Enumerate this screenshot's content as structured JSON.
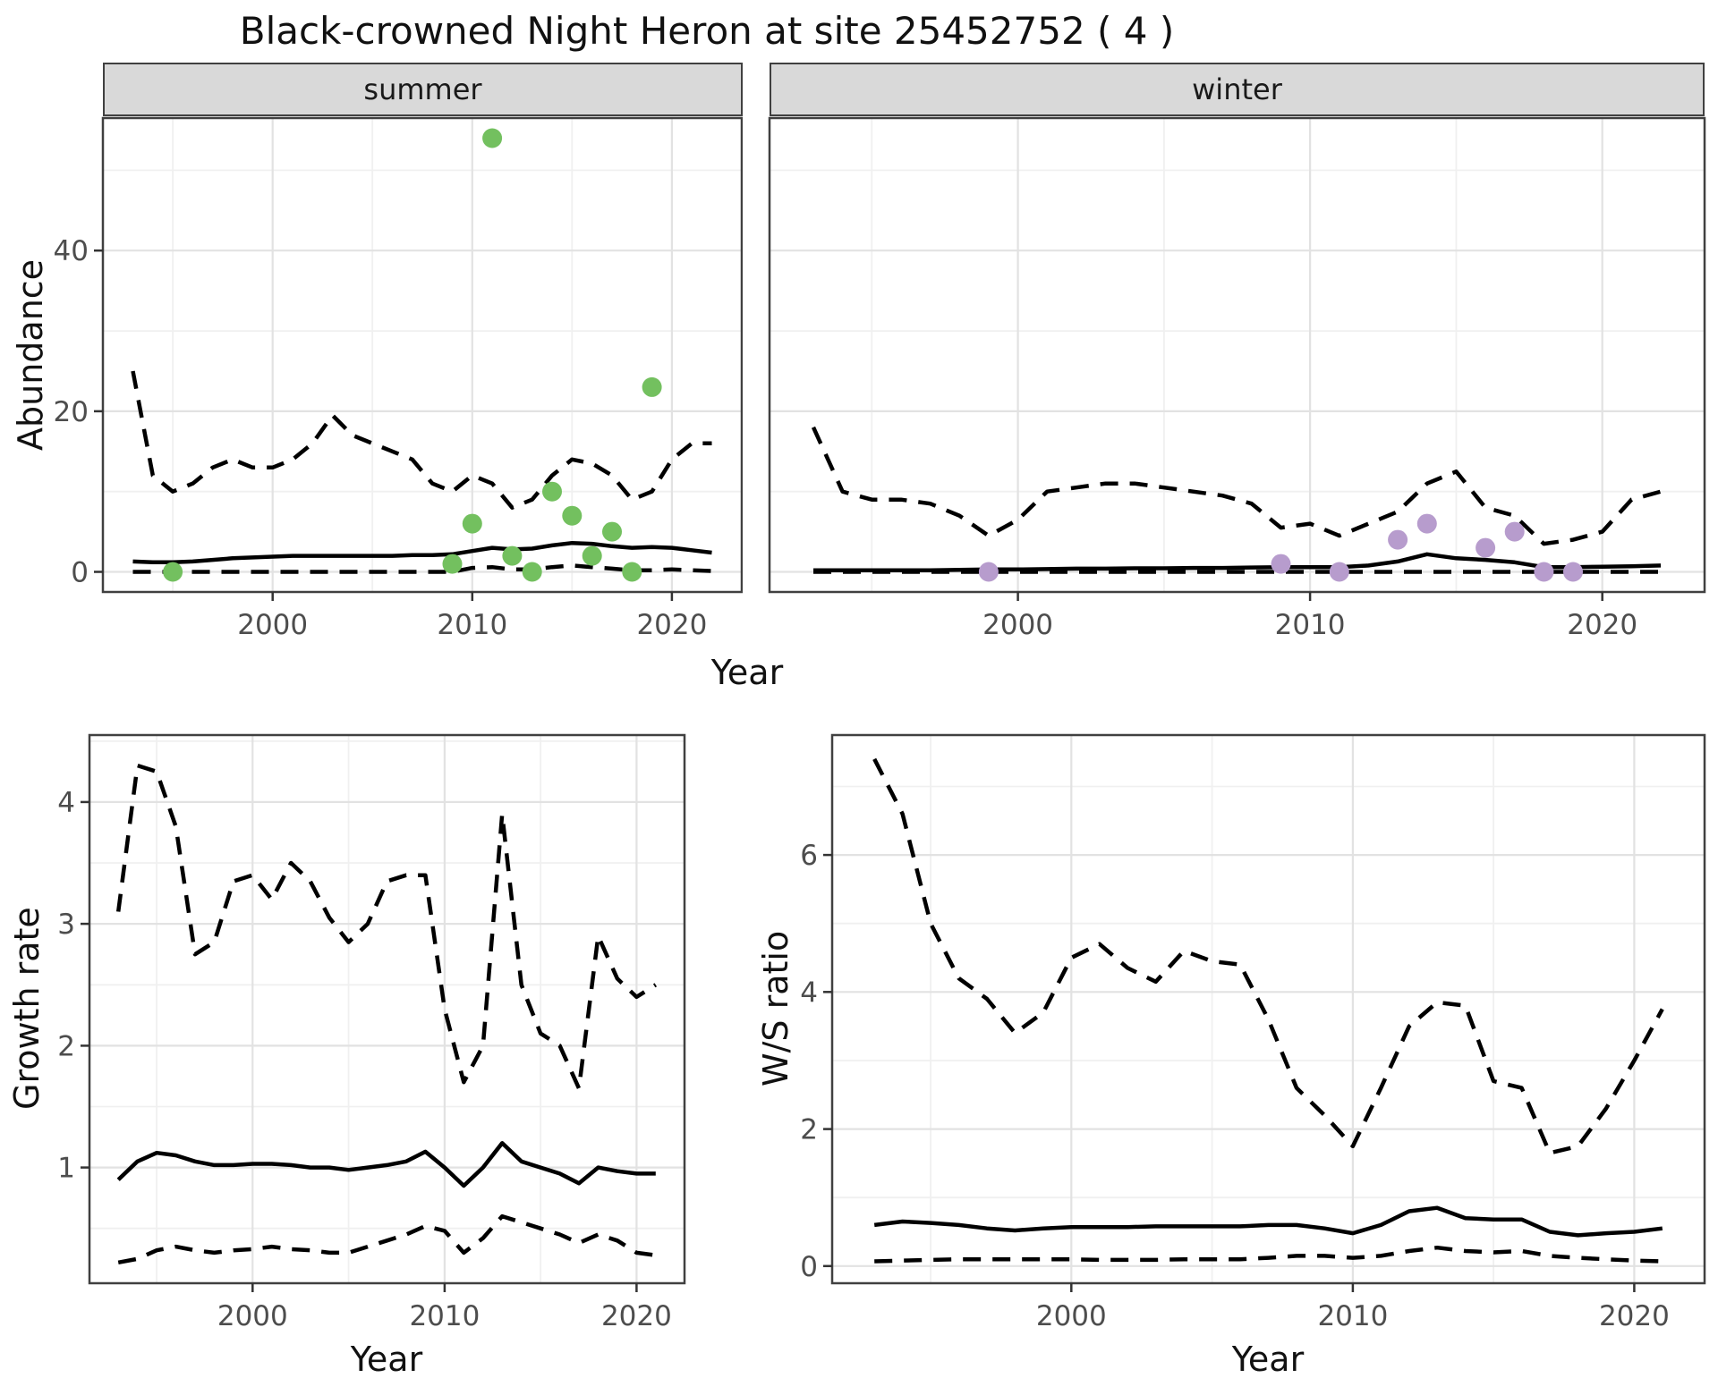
{
  "title": "Black-crowned Night Heron at site 25452752 ( 4 )",
  "facets": {
    "summer": "summer",
    "winter": "winter"
  },
  "axes": {
    "abundance": "Abundance",
    "year": "Year",
    "growth": "Growth rate",
    "ws": "W/S ratio"
  },
  "colors": {
    "summer_point": "#73c05f",
    "winter_point": "#b79ccd",
    "line": "#000000",
    "strip_bg": "#d9d9d9",
    "grid_major": "#e2e2e2",
    "grid_minor": "#f0f0f0",
    "tick_label": "#4d4d4d",
    "tick_mark": "#333333",
    "panel_border": "#404040"
  },
  "chart_data": [
    {
      "id": "summer",
      "type": "line",
      "facet_label": "summer",
      "xlabel": "Year",
      "ylabel": "Abundance",
      "xlim": [
        1991.5,
        2023.5
      ],
      "ylim": [
        -2.5,
        56.5
      ],
      "x_ticks": [
        2000,
        2010,
        2020
      ],
      "x_minor": [
        1995,
        2005,
        2015
      ],
      "y_ticks": [
        0,
        20,
        40
      ],
      "y_minor": [
        10,
        30,
        50
      ],
      "y_labels": true,
      "years": [
        1993,
        1994,
        1995,
        1996,
        1997,
        1998,
        1999,
        2000,
        2001,
        2002,
        2003,
        2004,
        2005,
        2006,
        2007,
        2008,
        2009,
        2010,
        2011,
        2012,
        2013,
        2014,
        2015,
        2016,
        2017,
        2018,
        2019,
        2020,
        2021,
        2022
      ],
      "series": [
        {
          "name": "upper_ci",
          "style": "dashed",
          "values": [
            25,
            12,
            10,
            11,
            13,
            14,
            13,
            13,
            14,
            16,
            19.5,
            17,
            16,
            15,
            14,
            11,
            10,
            12,
            11,
            8,
            9,
            12,
            14,
            13.5,
            12,
            9,
            10,
            14,
            16,
            16
          ]
        },
        {
          "name": "lower_ci",
          "style": "dashed",
          "values": [
            0,
            0,
            0,
            0,
            0,
            0,
            0,
            0,
            0,
            0,
            0,
            0,
            0,
            0,
            0,
            0,
            0,
            0.5,
            0.6,
            0.3,
            0.3,
            0.6,
            0.8,
            0.6,
            0.4,
            0.2,
            0.2,
            0.3,
            0.2,
            0.1
          ]
        },
        {
          "name": "fit",
          "style": "solid",
          "values": [
            1.3,
            1.2,
            1.2,
            1.3,
            1.5,
            1.7,
            1.8,
            1.9,
            2.0,
            2.0,
            2.0,
            2.0,
            2.0,
            2.0,
            2.1,
            2.1,
            2.2,
            2.6,
            3.0,
            2.8,
            2.9,
            3.3,
            3.6,
            3.5,
            3.2,
            3.0,
            3.1,
            3.0,
            2.7,
            2.4
          ]
        }
      ],
      "points": {
        "color_key": "summer_point",
        "data": [
          [
            1995,
            0
          ],
          [
            2009,
            1
          ],
          [
            2010,
            6
          ],
          [
            2011,
            54
          ],
          [
            2012,
            2
          ],
          [
            2013,
            0
          ],
          [
            2014,
            10
          ],
          [
            2015,
            7
          ],
          [
            2016,
            2
          ],
          [
            2017,
            5
          ],
          [
            2018,
            0
          ],
          [
            2019,
            23
          ]
        ]
      }
    },
    {
      "id": "winter",
      "type": "line",
      "facet_label": "winter",
      "xlabel": "Year",
      "ylabel": "Abundance",
      "xlim": [
        1991.5,
        2023.5
      ],
      "ylim": [
        -2.5,
        56.5
      ],
      "x_ticks": [
        2000,
        2010,
        2020
      ],
      "x_minor": [
        1995,
        2005,
        2015
      ],
      "y_ticks": [
        0,
        20,
        40
      ],
      "y_minor": [
        10,
        30,
        50
      ],
      "y_labels": false,
      "years": [
        1993,
        1994,
        1995,
        1996,
        1997,
        1998,
        1999,
        2000,
        2001,
        2002,
        2003,
        2004,
        2005,
        2006,
        2007,
        2008,
        2009,
        2010,
        2011,
        2012,
        2013,
        2014,
        2015,
        2016,
        2017,
        2018,
        2019,
        2020,
        2021,
        2022
      ],
      "series": [
        {
          "name": "upper_ci",
          "style": "dashed",
          "values": [
            18,
            10,
            9,
            9,
            8.5,
            7,
            4.5,
            6.5,
            10,
            10.5,
            11,
            11,
            10.5,
            10,
            9.5,
            8.5,
            5.5,
            6,
            4.5,
            6,
            7.5,
            11,
            12.5,
            8,
            7,
            3.5,
            4,
            5,
            9,
            10
          ]
        },
        {
          "name": "lower_ci",
          "style": "dashed",
          "values": [
            0,
            0,
            0,
            0,
            0,
            0,
            0,
            0,
            0,
            0,
            0,
            0,
            0,
            0,
            0,
            0,
            0,
            0,
            0,
            0,
            0,
            0,
            0,
            0,
            0,
            0,
            0,
            0,
            0,
            0
          ]
        },
        {
          "name": "fit",
          "style": "solid",
          "values": [
            0.2,
            0.2,
            0.2,
            0.2,
            0.2,
            0.25,
            0.3,
            0.3,
            0.35,
            0.4,
            0.4,
            0.45,
            0.45,
            0.5,
            0.5,
            0.55,
            0.6,
            0.6,
            0.6,
            0.8,
            1.3,
            2.2,
            1.7,
            1.5,
            1.2,
            0.6,
            0.6,
            0.65,
            0.7,
            0.8
          ]
        }
      ],
      "points": {
        "color_key": "winter_point",
        "data": [
          [
            1999,
            0
          ],
          [
            2009,
            1
          ],
          [
            2011,
            0
          ],
          [
            2013,
            4
          ],
          [
            2014,
            6
          ],
          [
            2016,
            3
          ],
          [
            2017,
            5
          ],
          [
            2018,
            0
          ],
          [
            2019,
            0
          ]
        ]
      }
    },
    {
      "id": "growth",
      "type": "line",
      "facet_label": "",
      "xlabel": "Year",
      "ylabel": "Growth rate",
      "xlim": [
        1991.5,
        2022.5
      ],
      "ylim": [
        0.05,
        4.55
      ],
      "x_ticks": [
        2000,
        2010,
        2020
      ],
      "x_minor": [
        1995,
        2005,
        2015
      ],
      "y_ticks": [
        1,
        2,
        3,
        4
      ],
      "y_minor": [
        0.5,
        1.5,
        2.5,
        3.5,
        4.5
      ],
      "y_labels": true,
      "years": [
        1993,
        1994,
        1995,
        1996,
        1997,
        1998,
        1999,
        2000,
        2001,
        2002,
        2003,
        2004,
        2005,
        2006,
        2007,
        2008,
        2009,
        2010,
        2011,
        2012,
        2013,
        2014,
        2015,
        2016,
        2017,
        2018,
        2019,
        2020,
        2021
      ],
      "series": [
        {
          "name": "upper_ci",
          "style": "dashed",
          "values": [
            3.1,
            4.3,
            4.25,
            3.8,
            2.75,
            2.85,
            3.35,
            3.4,
            3.2,
            3.5,
            3.35,
            3.05,
            2.85,
            3.0,
            3.35,
            3.4,
            3.4,
            2.3,
            1.7,
            2.0,
            3.9,
            2.5,
            2.1,
            2.0,
            1.65,
            2.9,
            2.55,
            2.4,
            2.5
          ]
        },
        {
          "name": "lower_ci",
          "style": "dashed",
          "values": [
            0.22,
            0.25,
            0.32,
            0.35,
            0.32,
            0.3,
            0.32,
            0.33,
            0.35,
            0.33,
            0.32,
            0.3,
            0.3,
            0.35,
            0.4,
            0.45,
            0.52,
            0.48,
            0.3,
            0.42,
            0.6,
            0.55,
            0.5,
            0.45,
            0.38,
            0.45,
            0.4,
            0.3,
            0.28
          ]
        },
        {
          "name": "fit",
          "style": "solid",
          "values": [
            0.9,
            1.05,
            1.12,
            1.1,
            1.05,
            1.02,
            1.02,
            1.03,
            1.03,
            1.02,
            1.0,
            1.0,
            0.98,
            1.0,
            1.02,
            1.05,
            1.13,
            1.0,
            0.85,
            1.0,
            1.2,
            1.05,
            1.0,
            0.95,
            0.87,
            1.0,
            0.97,
            0.95,
            0.95
          ]
        }
      ],
      "points": {
        "color_key": "",
        "data": []
      }
    },
    {
      "id": "ws",
      "type": "line",
      "facet_label": "",
      "xlabel": "Year",
      "ylabel": "W/S ratio",
      "xlim": [
        1991.5,
        2022.5
      ],
      "ylim": [
        -0.25,
        7.75
      ],
      "x_ticks": [
        2000,
        2010,
        2020
      ],
      "x_minor": [
        1995,
        2005,
        2015
      ],
      "y_ticks": [
        0,
        2,
        4,
        6
      ],
      "y_minor": [
        1,
        3,
        5,
        7
      ],
      "y_labels": true,
      "years": [
        1993,
        1994,
        1995,
        1996,
        1997,
        1998,
        1999,
        2000,
        2001,
        2002,
        2003,
        2004,
        2005,
        2006,
        2007,
        2008,
        2009,
        2010,
        2011,
        2012,
        2013,
        2014,
        2015,
        2016,
        2017,
        2018,
        2019,
        2020,
        2021
      ],
      "series": [
        {
          "name": "upper_ci",
          "style": "dashed",
          "values": [
            7.4,
            6.6,
            5.0,
            4.2,
            3.9,
            3.4,
            3.7,
            4.5,
            4.7,
            4.35,
            4.15,
            4.6,
            4.45,
            4.4,
            3.6,
            2.6,
            2.2,
            1.75,
            2.6,
            3.5,
            3.85,
            3.8,
            2.7,
            2.6,
            1.65,
            1.75,
            2.3,
            3.0,
            3.75
          ]
        },
        {
          "name": "lower_ci",
          "style": "dashed",
          "values": [
            0.07,
            0.08,
            0.09,
            0.1,
            0.1,
            0.1,
            0.1,
            0.1,
            0.09,
            0.09,
            0.09,
            0.1,
            0.1,
            0.1,
            0.12,
            0.15,
            0.15,
            0.12,
            0.15,
            0.22,
            0.27,
            0.22,
            0.2,
            0.22,
            0.15,
            0.12,
            0.1,
            0.08,
            0.07
          ]
        },
        {
          "name": "fit",
          "style": "solid",
          "values": [
            0.6,
            0.65,
            0.63,
            0.6,
            0.55,
            0.52,
            0.55,
            0.57,
            0.57,
            0.57,
            0.58,
            0.58,
            0.58,
            0.58,
            0.6,
            0.6,
            0.55,
            0.48,
            0.6,
            0.8,
            0.85,
            0.7,
            0.68,
            0.68,
            0.5,
            0.45,
            0.48,
            0.5,
            0.55
          ]
        }
      ],
      "points": {
        "color_key": "",
        "data": []
      }
    }
  ]
}
